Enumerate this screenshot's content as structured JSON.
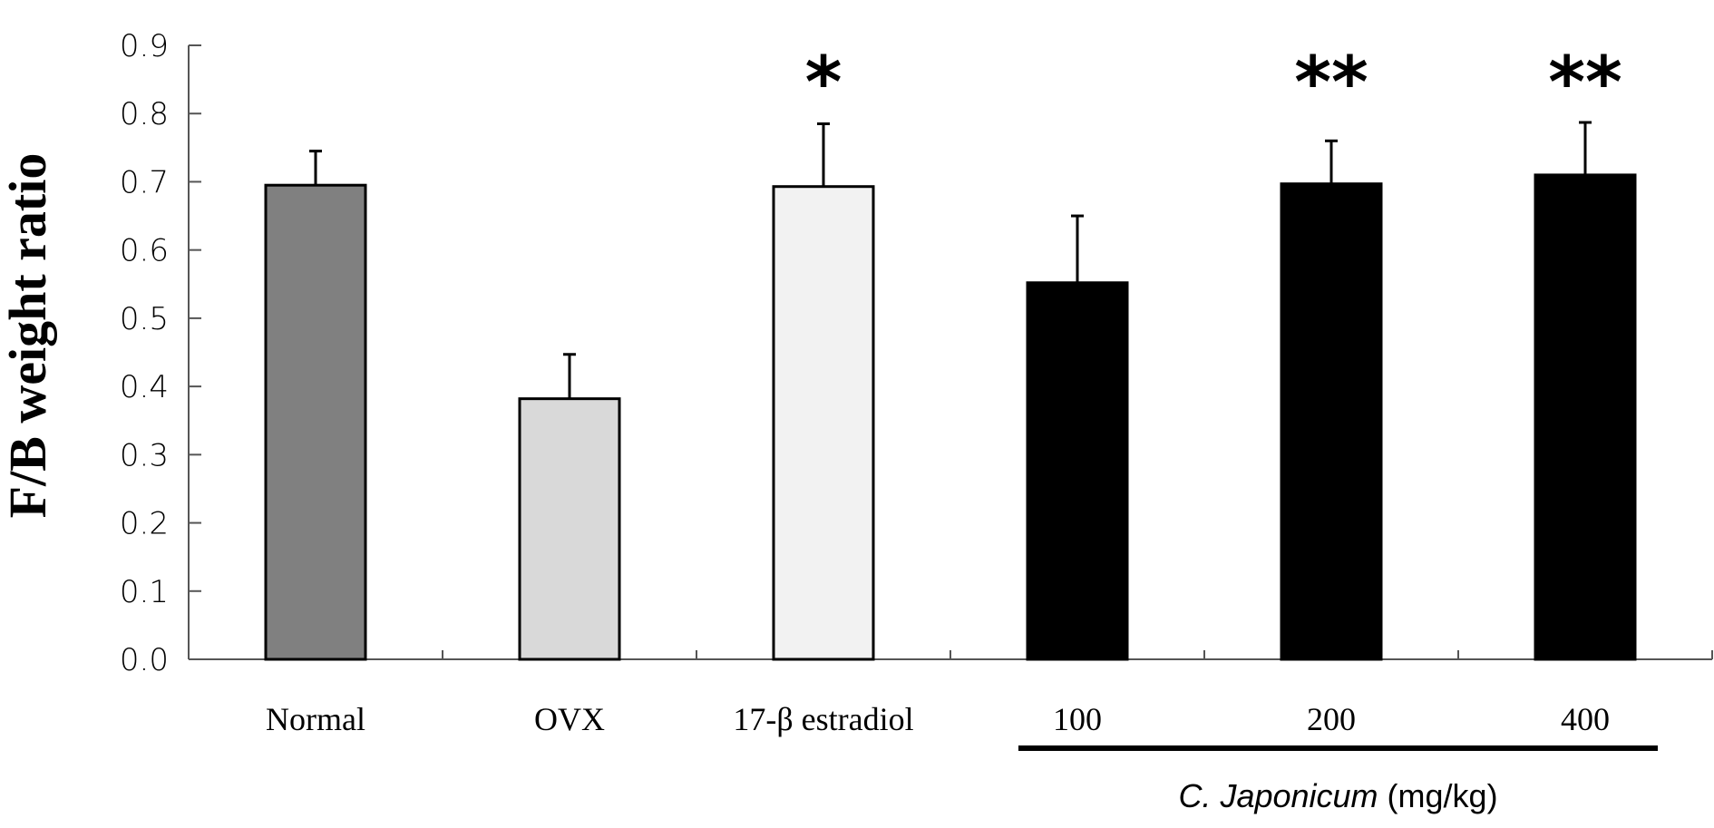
{
  "chart_data": {
    "type": "bar",
    "title": "",
    "xlabel": "",
    "ylabel": "F/B weight ratio",
    "ylim": [
      0.0,
      0.9
    ],
    "yticks": [
      "0.0",
      "0.1",
      "0.2",
      "0.3",
      "0.4",
      "0.5",
      "0.6",
      "0.7",
      "0.8",
      "0.9"
    ],
    "grid": false,
    "legend": null,
    "categories": [
      "Normal",
      "OVX",
      "17-β estradiol",
      "100",
      "200",
      "400"
    ],
    "values": [
      0.695,
      0.382,
      0.693,
      0.552,
      0.697,
      0.71
    ],
    "error_upper": [
      0.745,
      0.447,
      0.785,
      0.65,
      0.76,
      0.787
    ],
    "significance": [
      "",
      "",
      "*",
      "",
      "**",
      "**"
    ],
    "bar_colors": [
      "#808080",
      "#d9d9d9",
      "#f2f2f2",
      "#000000",
      "#000000",
      "#000000"
    ],
    "group_annotation": {
      "label_italic": "C. Japonicum",
      "label_unit": " (mg/kg)",
      "spans_categories": [
        "100",
        "200",
        "400"
      ]
    }
  },
  "axes": {
    "ylabel": "F/B weight ratio"
  }
}
